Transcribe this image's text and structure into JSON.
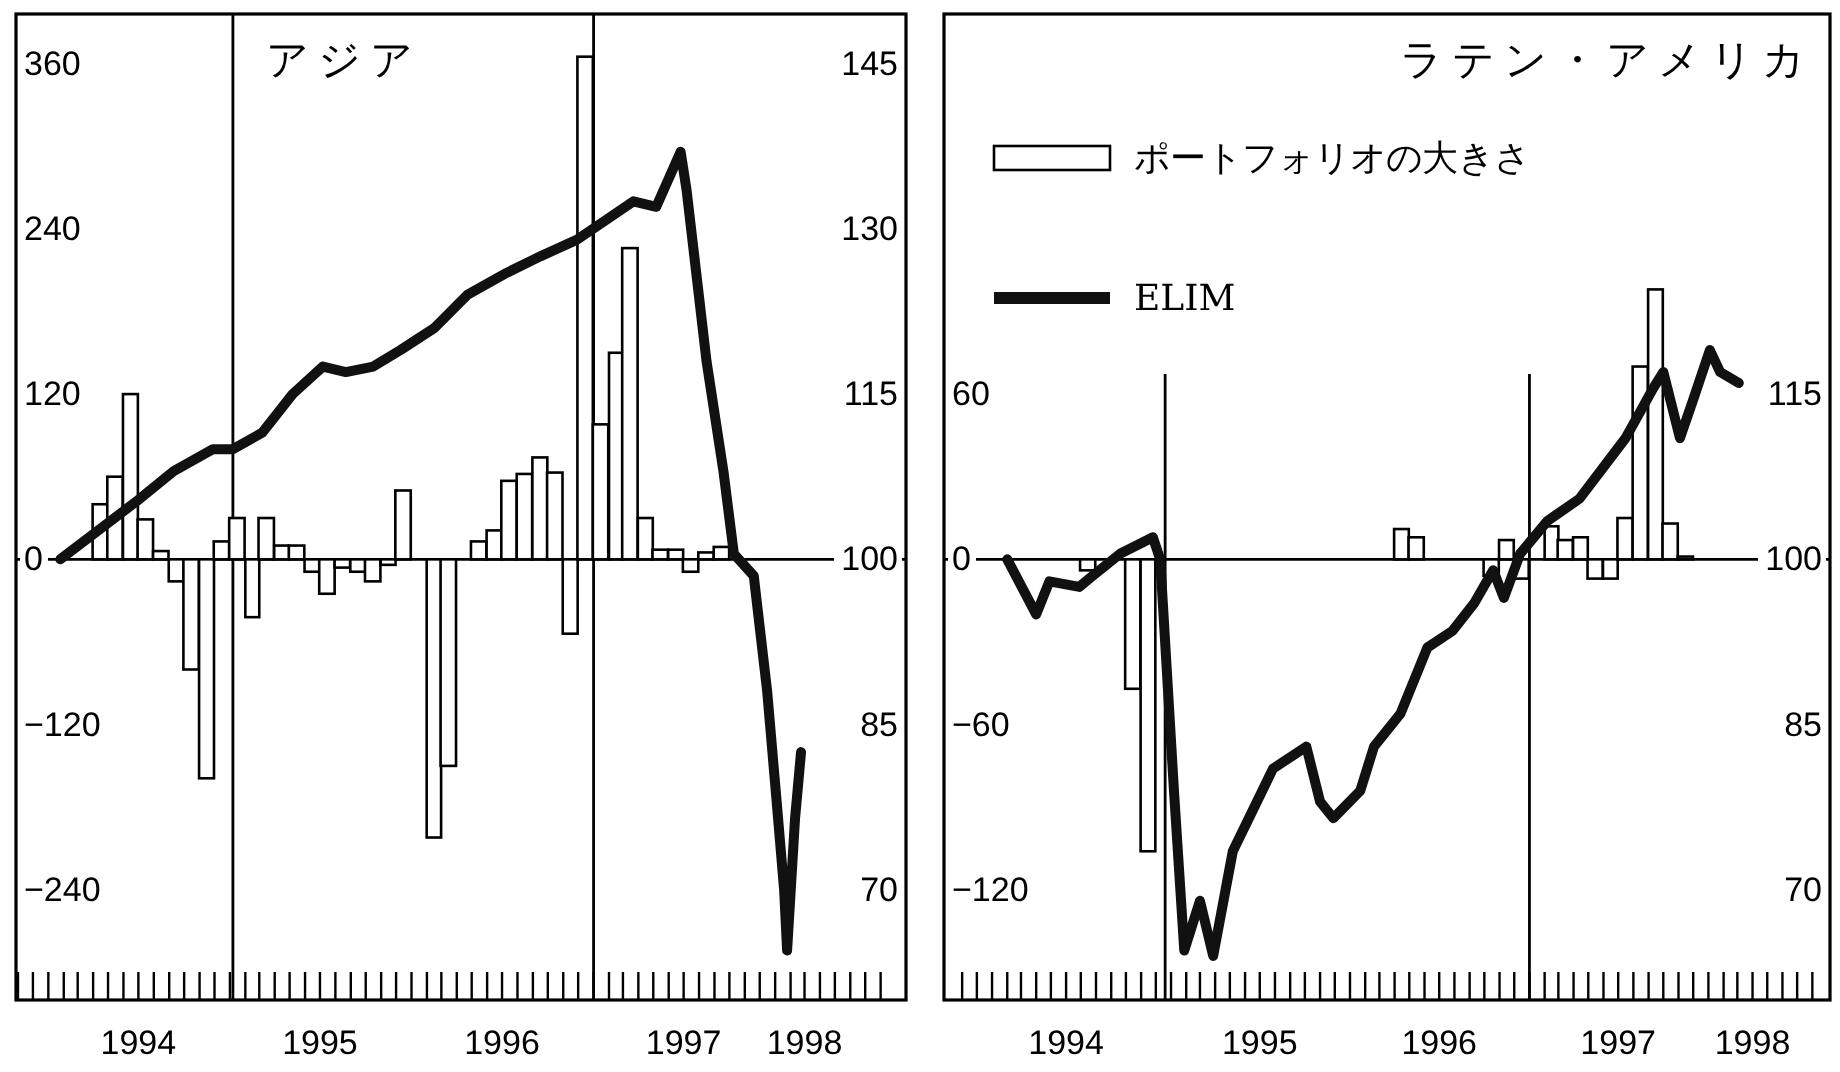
{
  "chart_data": [
    {
      "type": "bar",
      "title": "アジア",
      "x": [
        "1994-04-15",
        "1994-05-15",
        "1994-06-15",
        "1994-07-15",
        "1994-08-15",
        "1994-09-15",
        "1994-10-15",
        "1994-11-15",
        "1994-12-15",
        "1995-01-15",
        "1995-02-15",
        "1995-03-15",
        "1995-04-15",
        "1995-05-15",
        "1995-06-15",
        "1995-07-15",
        "1995-08-15",
        "1995-09-15",
        "1995-10-15",
        "1995-11-15",
        "1995-12-15",
        "1996-01-15",
        "1996-02-15",
        "1996-03-15",
        "1996-04-15",
        "1996-05-15",
        "1996-06-15",
        "1996-07-15",
        "1996-08-15",
        "1996-09-15",
        "1996-10-15",
        "1996-11-15",
        "1996-12-15",
        "1997-01-15",
        "1997-02-15",
        "1997-03-15",
        "1997-04-15",
        "1997-05-15",
        "1997-06-15",
        "1997-07-15",
        "1997-08-15",
        "1997-09-15"
      ],
      "series": [
        {
          "type": "bar",
          "color": "#ffffff",
          "values": [
            40,
            60,
            120,
            29,
            6,
            -16,
            -80,
            -159,
            13,
            30,
            -42,
            30,
            10,
            10,
            -9,
            -25,
            -6,
            -9,
            -16,
            -4,
            50,
            null,
            -202,
            -150,
            null,
            13,
            21,
            57,
            62,
            74,
            63,
            -54,
            365,
            98,
            150,
            226,
            30,
            7,
            7,
            -9,
            5,
            9
          ]
        },
        {
          "type": "line",
          "axis": "y2",
          "color": "#111111",
          "x": [
            "1994-01-25",
            "1994-07-04",
            "1994-09-10",
            "1994-11-28",
            "1995-01-07",
            "1995-03-07",
            "1995-05-07",
            "1995-07-07",
            "1995-08-22",
            "1995-10-16",
            "1995-12-10",
            "1996-02-16",
            "1996-04-22",
            "1996-07-10",
            "1996-09-16",
            "1996-11-28",
            "1997-01-16",
            "1997-03-22",
            "1997-05-07",
            "1997-06-25",
            "1997-07-07",
            "1997-08-16",
            "1997-09-19",
            "1997-10-10",
            "1997-11-19",
            "1997-12-16",
            "1998-01-04",
            "1998-01-19",
            "1998-01-25",
            "1998-02-10",
            "1998-02-22"
          ],
          "values": [
            100,
            105.5,
            108,
            110,
            110,
            111.5,
            115,
            117.5,
            117,
            117.5,
            119,
            121,
            124,
            126,
            127.5,
            129,
            130.5,
            132.5,
            132,
            137,
            133.5,
            118,
            108,
            100.5,
            98.5,
            88,
            78,
            70,
            64.5,
            76.5,
            82.5
          ]
        }
      ],
      "xlim": [
        "1993-10-28",
        "1998-09-21"
      ],
      "xticks": [
        {
          "value": "1993-11-01",
          "label": null
        },
        {
          "value": "1993-12-01",
          "label": null
        },
        {
          "value": "1994-01-01",
          "label": null
        },
        {
          "value": "1994-02-01",
          "label": null
        },
        {
          "value": "1994-03-01",
          "label": null
        },
        {
          "value": "1994-04-01",
          "label": null
        },
        {
          "value": "1994-05-01",
          "label": null
        },
        {
          "value": "1994-06-01",
          "label": null
        },
        {
          "value": "1994-07-01",
          "label": null
        },
        {
          "value": "1994-08-01",
          "label": null
        },
        {
          "value": "1994-09-01",
          "label": null
        },
        {
          "value": "1994-10-01",
          "label": null
        },
        {
          "value": "1994-11-01",
          "label": null
        },
        {
          "value": "1994-12-01",
          "label": null
        },
        {
          "value": "1995-01-01",
          "label": null
        },
        {
          "value": "1995-02-01",
          "label": null
        },
        {
          "value": "1995-03-01",
          "label": null
        },
        {
          "value": "1995-04-01",
          "label": null
        },
        {
          "value": "1995-05-01",
          "label": null
        },
        {
          "value": "1995-06-01",
          "label": null
        },
        {
          "value": "1995-07-01",
          "label": null
        },
        {
          "value": "1995-08-01",
          "label": null
        },
        {
          "value": "1995-09-01",
          "label": null
        },
        {
          "value": "1995-10-01",
          "label": null
        },
        {
          "value": "1995-11-01",
          "label": null
        },
        {
          "value": "1995-12-01",
          "label": null
        },
        {
          "value": "1996-01-01",
          "label": null
        },
        {
          "value": "1996-02-01",
          "label": null
        },
        {
          "value": "1996-03-01",
          "label": null
        },
        {
          "value": "1996-04-01",
          "label": null
        },
        {
          "value": "1996-05-01",
          "label": null
        },
        {
          "value": "1996-06-01",
          "label": null
        },
        {
          "value": "1996-07-01",
          "label": null
        },
        {
          "value": "1996-08-01",
          "label": null
        },
        {
          "value": "1996-09-01",
          "label": null
        },
        {
          "value": "1996-10-01",
          "label": null
        },
        {
          "value": "1996-11-01",
          "label": null
        },
        {
          "value": "1996-12-01",
          "label": null
        },
        {
          "value": "1997-01-01",
          "label": null
        },
        {
          "value": "1997-02-01",
          "label": null
        },
        {
          "value": "1997-03-01",
          "label": null
        },
        {
          "value": "1997-04-01",
          "label": null
        },
        {
          "value": "1997-05-01",
          "label": null
        },
        {
          "value": "1997-06-01",
          "label": null
        },
        {
          "value": "1997-07-01",
          "label": null
        },
        {
          "value": "1997-08-01",
          "label": null
        },
        {
          "value": "1997-09-01",
          "label": null
        },
        {
          "value": "1997-10-01",
          "label": null
        },
        {
          "value": "1997-11-01",
          "label": null
        },
        {
          "value": "1997-12-01",
          "label": null
        },
        {
          "value": "1998-01-01",
          "label": null
        },
        {
          "value": "1998-02-01",
          "label": null
        },
        {
          "value": "1998-03-01",
          "label": null
        },
        {
          "value": "1998-04-01",
          "label": null
        },
        {
          "value": "1998-05-01",
          "label": null
        },
        {
          "value": "1998-06-01",
          "label": null
        },
        {
          "value": "1998-07-01",
          "label": null
        },
        {
          "value": "1998-08-01",
          "label": null
        },
        {
          "value": "1994-07-01",
          "label": "1994"
        },
        {
          "value": "1995-07-01",
          "label": "1995"
        },
        {
          "value": "1996-07-01",
          "label": "1996"
        },
        {
          "value": "1997-07-01",
          "label": "1997"
        },
        {
          "value": "1998-03-01",
          "label": "1998"
        }
      ],
      "ylim": [
        -320,
        396
      ],
      "yticks": [
        360,
        240,
        120,
        0,
        {
          "value": -120,
          "label": "−120"
        },
        {
          "value": -240,
          "label": "−240"
        }
      ],
      "y2lim": [
        60,
        149.5
      ],
      "y2ticks": [
        145,
        130,
        115,
        100,
        85,
        70
      ],
      "ref_lines": [
        {
          "axis": "y",
          "value": 0
        },
        {
          "axis": "x",
          "value": "1995-01-07"
        },
        {
          "axis": "x",
          "value": "1997-01-01"
        }
      ]
    },
    {
      "type": "bar",
      "title": "ラテン・アメリカ",
      "legend": "top left",
      "x": [
        "1994-07-15",
        "1994-08-15",
        "1994-09-15",
        "1994-10-15",
        "1994-11-15",
        "1994-12-15",
        "1995-01-15",
        "1995-02-15",
        "1995-03-15",
        "1995-04-15",
        "1995-05-15",
        "1995-06-15",
        "1995-07-15",
        "1995-08-15",
        "1995-09-15",
        "1995-10-15",
        "1995-11-15",
        "1995-12-15",
        "1996-01-15",
        "1996-02-15",
        "1996-03-15",
        "1996-04-15",
        "1996-05-15",
        "1996-06-15",
        "1996-07-15",
        "1996-08-15",
        "1996-09-15",
        "1996-10-15",
        "1996-11-15",
        "1996-12-15",
        "1997-01-15",
        "1997-02-15",
        "1997-03-15",
        "1997-04-15",
        "1997-05-15",
        "1997-06-15",
        "1997-07-15",
        "1997-08-15",
        "1997-09-15",
        "1997-10-15",
        "1997-11-15"
      ],
      "series": [
        {
          "type": "bar",
          "name": "ポートフォリオの大きさ",
          "color": "#ffffff",
          "values": [
            -4,
            null,
            null,
            -47,
            -106,
            null,
            null,
            null,
            null,
            null,
            null,
            null,
            null,
            null,
            null,
            null,
            null,
            null,
            null,
            null,
            null,
            11,
            8,
            null,
            null,
            null,
            null,
            -6,
            7,
            -7,
            null,
            12,
            7,
            8,
            -7,
            -7,
            15,
            70,
            98,
            13,
            1
          ]
        },
        {
          "type": "line",
          "name": "ELIM",
          "axis": "y2",
          "color": "#111111",
          "x": [
            "1994-02-01",
            "1994-04-01",
            "1994-04-28",
            "1994-06-28",
            "1994-07-25",
            "1994-09-19",
            "1994-11-25",
            "1994-12-10",
            "1995-01-07",
            "1995-01-28",
            "1995-03-01",
            "1995-03-28",
            "1995-05-07",
            "1995-07-28",
            "1995-10-04",
            "1995-11-01",
            "1995-11-28",
            "1996-01-22",
            "1996-02-19",
            "1996-04-13",
            "1996-06-07",
            "1996-07-28",
            "1996-09-10",
            "1996-10-19",
            "1996-11-10",
            "1996-12-13",
            "1997-02-07",
            "1997-04-13",
            "1997-07-16",
            "1997-09-10",
            "1997-10-01",
            "1997-11-04",
            "1997-12-01",
            "1998-01-04",
            "1998-01-25",
            "1998-03-04"
          ],
          "values": [
            100,
            95,
            98,
            97.5,
            98.5,
            100.5,
            102,
            100,
            79,
            64.5,
            69,
            64,
            73.5,
            81,
            83,
            78,
            76.5,
            79,
            83,
            86,
            92,
            93.5,
            96,
            99,
            96.5,
            100.5,
            103.5,
            105.5,
            111,
            115.5,
            117,
            111,
            114.5,
            119,
            117,
            116
          ]
        }
      ],
      "xlim": [
        "1993-09-25",
        "1998-09-06"
      ],
      "xticks": [
        {
          "value": "1993-11-01",
          "label": null
        },
        {
          "value": "1993-12-01",
          "label": null
        },
        {
          "value": "1994-01-01",
          "label": null
        },
        {
          "value": "1994-02-01",
          "label": null
        },
        {
          "value": "1994-03-01",
          "label": null
        },
        {
          "value": "1994-04-01",
          "label": null
        },
        {
          "value": "1994-05-01",
          "label": null
        },
        {
          "value": "1994-06-01",
          "label": null
        },
        {
          "value": "1994-07-01",
          "label": null
        },
        {
          "value": "1994-08-01",
          "label": null
        },
        {
          "value": "1994-09-01",
          "label": null
        },
        {
          "value": "1994-10-01",
          "label": null
        },
        {
          "value": "1994-11-01",
          "label": null
        },
        {
          "value": "1994-12-01",
          "label": null
        },
        {
          "value": "1995-01-01",
          "label": null
        },
        {
          "value": "1995-02-01",
          "label": null
        },
        {
          "value": "1995-03-01",
          "label": null
        },
        {
          "value": "1995-04-01",
          "label": null
        },
        {
          "value": "1995-05-01",
          "label": null
        },
        {
          "value": "1995-06-01",
          "label": null
        },
        {
          "value": "1995-07-01",
          "label": null
        },
        {
          "value": "1995-08-01",
          "label": null
        },
        {
          "value": "1995-09-01",
          "label": null
        },
        {
          "value": "1995-10-01",
          "label": null
        },
        {
          "value": "1995-11-01",
          "label": null
        },
        {
          "value": "1995-12-01",
          "label": null
        },
        {
          "value": "1996-01-01",
          "label": null
        },
        {
          "value": "1996-02-01",
          "label": null
        },
        {
          "value": "1996-03-01",
          "label": null
        },
        {
          "value": "1996-04-01",
          "label": null
        },
        {
          "value": "1996-05-01",
          "label": null
        },
        {
          "value": "1996-06-01",
          "label": null
        },
        {
          "value": "1996-07-01",
          "label": null
        },
        {
          "value": "1996-08-01",
          "label": null
        },
        {
          "value": "1996-09-01",
          "label": null
        },
        {
          "value": "1996-10-01",
          "label": null
        },
        {
          "value": "1996-11-01",
          "label": null
        },
        {
          "value": "1996-12-01",
          "label": null
        },
        {
          "value": "1997-01-01",
          "label": null
        },
        {
          "value": "1997-02-01",
          "label": null
        },
        {
          "value": "1997-03-01",
          "label": null
        },
        {
          "value": "1997-04-01",
          "label": null
        },
        {
          "value": "1997-05-01",
          "label": null
        },
        {
          "value": "1997-06-01",
          "label": null
        },
        {
          "value": "1997-07-01",
          "label": null
        },
        {
          "value": "1997-08-01",
          "label": null
        },
        {
          "value": "1997-09-01",
          "label": null
        },
        {
          "value": "1997-10-01",
          "label": null
        },
        {
          "value": "1997-11-01",
          "label": null
        },
        {
          "value": "1997-12-01",
          "label": null
        },
        {
          "value": "1998-01-01",
          "label": null
        },
        {
          "value": "1998-02-01",
          "label": null
        },
        {
          "value": "1998-03-01",
          "label": null
        },
        {
          "value": "1998-04-01",
          "label": null
        },
        {
          "value": "1998-05-01",
          "label": null
        },
        {
          "value": "1998-06-01",
          "label": null
        },
        {
          "value": "1998-07-01",
          "label": null
        },
        {
          "value": "1998-08-01",
          "label": null
        },
        {
          "value": "1994-06-01",
          "label": "1994"
        },
        {
          "value": "1995-07-01",
          "label": "1995"
        },
        {
          "value": "1996-07-01",
          "label": "1996"
        },
        {
          "value": "1997-07-01",
          "label": "1997"
        },
        {
          "value": "1998-04-01",
          "label": "1998"
        }
      ],
      "ylim": [
        -160,
        198
      ],
      "yticks": [
        60,
        0,
        {
          "value": -60,
          "label": "−60"
        },
        {
          "value": -120,
          "label": "−120"
        }
      ],
      "y2lim": [
        60,
        149.5
      ],
      "y2ticks": [
        115,
        100,
        85,
        70
      ],
      "ref_lines": [
        {
          "axis": "y",
          "value": 0
        },
        {
          "axis": "x",
          "value": "1994-12-20"
        },
        {
          "axis": "x",
          "value": "1997-01-01"
        }
      ]
    }
  ]
}
